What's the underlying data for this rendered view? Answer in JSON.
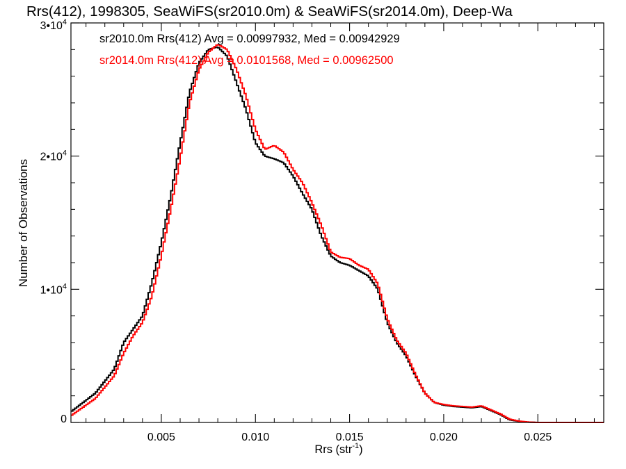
{
  "chart_data": {
    "type": "line",
    "title": "Rrs(412), 1998305, SeaWiFS(sr2010.0m) & SeaWiFS(sr2014.0m), Deep-Wa",
    "xlabel": "Rrs (str",
    "xlabel_sup": "-1",
    "xlabel_end": ")",
    "ylabel": "Number of Observations",
    "xlim": [
      0.0002,
      0.0285
    ],
    "ylim": [
      0,
      30000
    ],
    "xticks": [
      {
        "value": 0.005,
        "label": "0.005"
      },
      {
        "value": 0.01,
        "label": "0.010"
      },
      {
        "value": 0.015,
        "label": "0.015"
      },
      {
        "value": 0.02,
        "label": "0.020"
      },
      {
        "value": 0.025,
        "label": "0.025"
      }
    ],
    "yticks": [
      {
        "value": 0,
        "base": "0",
        "exp": ""
      },
      {
        "value": 10000,
        "base": "1•10",
        "exp": "4"
      },
      {
        "value": 20000,
        "base": "2•10",
        "exp": "4"
      },
      {
        "value": 30000,
        "base": "3•10",
        "exp": "4"
      }
    ],
    "step_style": true,
    "series": [
      {
        "name": "sr2010.0m Rrs(412) Avg = 0.00997932, Med = 0.00942929",
        "color": "#000000",
        "points": [
          [
            0.0002,
            800
          ],
          [
            0.0015,
            2200
          ],
          [
            0.0025,
            4000
          ],
          [
            0.003,
            6000
          ],
          [
            0.0035,
            7000
          ],
          [
            0.004,
            8000
          ],
          [
            0.0045,
            10500
          ],
          [
            0.005,
            13500
          ],
          [
            0.0055,
            17000
          ],
          [
            0.006,
            21000
          ],
          [
            0.0065,
            24800
          ],
          [
            0.007,
            27000
          ],
          [
            0.0075,
            28000
          ],
          [
            0.008,
            28200
          ],
          [
            0.0085,
            27500
          ],
          [
            0.009,
            25500
          ],
          [
            0.0095,
            23500
          ],
          [
            0.01,
            21000
          ],
          [
            0.0105,
            20000
          ],
          [
            0.011,
            19800
          ],
          [
            0.0115,
            19500
          ],
          [
            0.012,
            18500
          ],
          [
            0.0125,
            17200
          ],
          [
            0.013,
            16000
          ],
          [
            0.0135,
            14000
          ],
          [
            0.014,
            12500
          ],
          [
            0.0145,
            12000
          ],
          [
            0.015,
            11800
          ],
          [
            0.0155,
            11400
          ],
          [
            0.016,
            11000
          ],
          [
            0.0165,
            10000
          ],
          [
            0.017,
            7500
          ],
          [
            0.0175,
            6000
          ],
          [
            0.018,
            5000
          ],
          [
            0.0185,
            3500
          ],
          [
            0.019,
            2200
          ],
          [
            0.0195,
            1500
          ],
          [
            0.02,
            1300
          ],
          [
            0.0205,
            1200
          ],
          [
            0.021,
            1150
          ],
          [
            0.0215,
            1100
          ],
          [
            0.022,
            1200
          ],
          [
            0.0225,
            900
          ],
          [
            0.023,
            600
          ],
          [
            0.0235,
            200
          ],
          [
            0.024,
            80
          ],
          [
            0.0245,
            20
          ],
          [
            0.025,
            0
          ],
          [
            0.0285,
            0
          ]
        ]
      },
      {
        "name": "sr2014.0m Rrs(412) Avg = 0.0101568, Med = 0.00962500",
        "color": "#ff0000",
        "points": [
          [
            0.0002,
            500
          ],
          [
            0.0015,
            1800
          ],
          [
            0.0025,
            3500
          ],
          [
            0.003,
            5200
          ],
          [
            0.0035,
            6500
          ],
          [
            0.004,
            7500
          ],
          [
            0.0045,
            9500
          ],
          [
            0.005,
            12500
          ],
          [
            0.0055,
            16000
          ],
          [
            0.006,
            19800
          ],
          [
            0.0065,
            24000
          ],
          [
            0.007,
            26500
          ],
          [
            0.0075,
            27800
          ],
          [
            0.008,
            28400
          ],
          [
            0.0085,
            28000
          ],
          [
            0.009,
            26500
          ],
          [
            0.0095,
            24500
          ],
          [
            0.01,
            22000
          ],
          [
            0.0105,
            20500
          ],
          [
            0.011,
            20800
          ],
          [
            0.0115,
            20300
          ],
          [
            0.012,
            19000
          ],
          [
            0.0125,
            18000
          ],
          [
            0.013,
            16500
          ],
          [
            0.0135,
            14800
          ],
          [
            0.014,
            12800
          ],
          [
            0.0145,
            12400
          ],
          [
            0.015,
            12300
          ],
          [
            0.0155,
            11800
          ],
          [
            0.016,
            11500
          ],
          [
            0.0165,
            10400
          ],
          [
            0.017,
            7800
          ],
          [
            0.0175,
            6200
          ],
          [
            0.018,
            5200
          ],
          [
            0.0185,
            3600
          ],
          [
            0.019,
            2200
          ],
          [
            0.0195,
            1500
          ],
          [
            0.02,
            1350
          ],
          [
            0.0205,
            1250
          ],
          [
            0.021,
            1200
          ],
          [
            0.0215,
            1150
          ],
          [
            0.022,
            1250
          ],
          [
            0.0225,
            950
          ],
          [
            0.023,
            650
          ],
          [
            0.0235,
            250
          ],
          [
            0.024,
            100
          ],
          [
            0.0245,
            30
          ],
          [
            0.025,
            0
          ],
          [
            0.0285,
            0
          ]
        ]
      }
    ]
  }
}
